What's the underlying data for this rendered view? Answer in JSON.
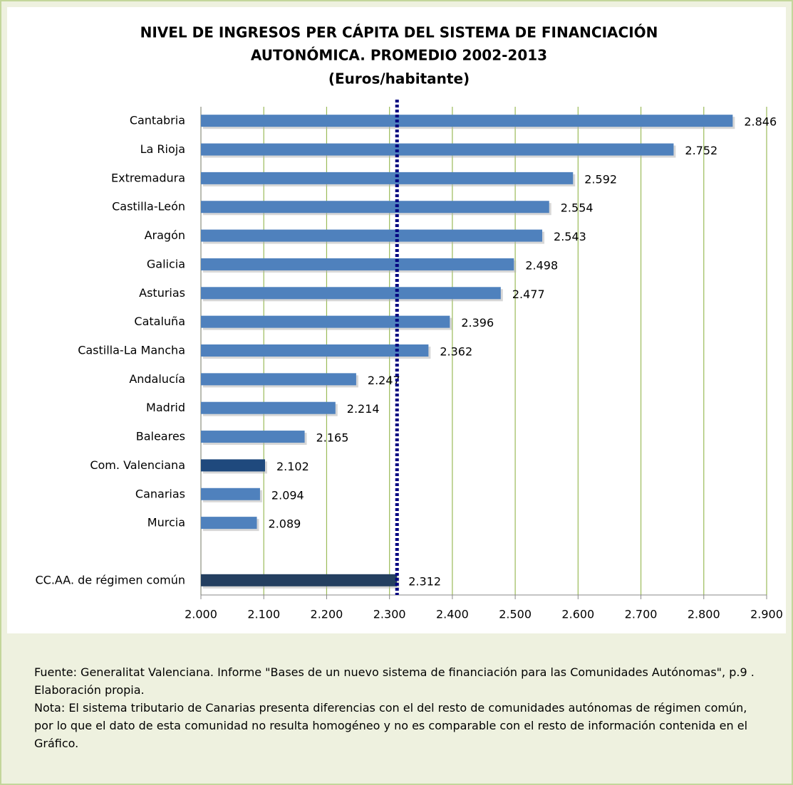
{
  "chart_data": {
    "type": "bar",
    "orientation": "horizontal",
    "title": [
      "NIVEL DE INGRESOS PER CÁPITA DEL SISTEMA DE FINANCIACIÓN",
      "AUTONÓMICA. PROMEDIO 2002-2013",
      "(Euros/habitante)"
    ],
    "categories": [
      "Cantabria",
      "La Rioja",
      "Extremadura",
      "Castilla-León",
      "Aragón",
      "Galicia",
      "Asturias",
      "Cataluña",
      "Castilla-La Mancha",
      "Andalucía ",
      "Madrid",
      "Baleares",
      "Com. Valenciana",
      "Canarias",
      "Murcia",
      null,
      "CC.AA. de régimen común"
    ],
    "values": [
      2846,
      2752,
      2592,
      2554,
      2543,
      2498,
      2477,
      2396,
      2362,
      2247,
      2214,
      2165,
      2102,
      2094,
      2089,
      null,
      2312
    ],
    "value_labels": [
      "2.846",
      "2.752",
      "2.592",
      "2.554",
      "2.543",
      "2.498",
      "2.477",
      "2.396",
      "2.362",
      "2.247",
      "2.214",
      "2.165",
      "2.102",
      "2.094",
      "2.089",
      null,
      "2.312"
    ],
    "colors": [
      "#4f81bd",
      "#4f81bd",
      "#4f81bd",
      "#4f81bd",
      "#4f81bd",
      "#4f81bd",
      "#4f81bd",
      "#4f81bd",
      "#4f81bd",
      "#4f81bd",
      "#4f81bd",
      "#4f81bd",
      "#1f497d",
      "#4f81bd",
      "#4f81bd",
      null,
      "#243f60"
    ],
    "xlim": [
      2000,
      2900
    ],
    "xticks": [
      {
        "value": 2000,
        "label": "2.000"
      },
      {
        "value": 2100,
        "label": "2.100"
      },
      {
        "value": 2200,
        "label": "2.200"
      },
      {
        "value": 2300,
        "label": "2.300"
      },
      {
        "value": 2400,
        "label": "2.400"
      },
      {
        "value": 2500,
        "label": "2.500"
      },
      {
        "value": 2600,
        "label": "2.600"
      },
      {
        "value": 2700,
        "label": "2.700"
      },
      {
        "value": 2800,
        "label": "2.800"
      },
      {
        "value": 2900,
        "label": "2.900"
      }
    ],
    "grid": true,
    "grid_color": "#9bbb59",
    "reference_value": 2312,
    "reference_color": "#000080"
  },
  "notes": [
    "Fuente: Generalitat Valenciana. Informe \"Bases de un nuevo sistema de financiación para las Comunidades Autónomas\", p.9 . Elaboración propia.",
    "Nota: El sistema tributario de Canarias presenta diferencias con el del resto de comunidades autónomas de régimen común, por lo que el dato de esta comunidad no resulta homogéneo y no es comparable con el resto de información contenida en el Gráfico."
  ]
}
